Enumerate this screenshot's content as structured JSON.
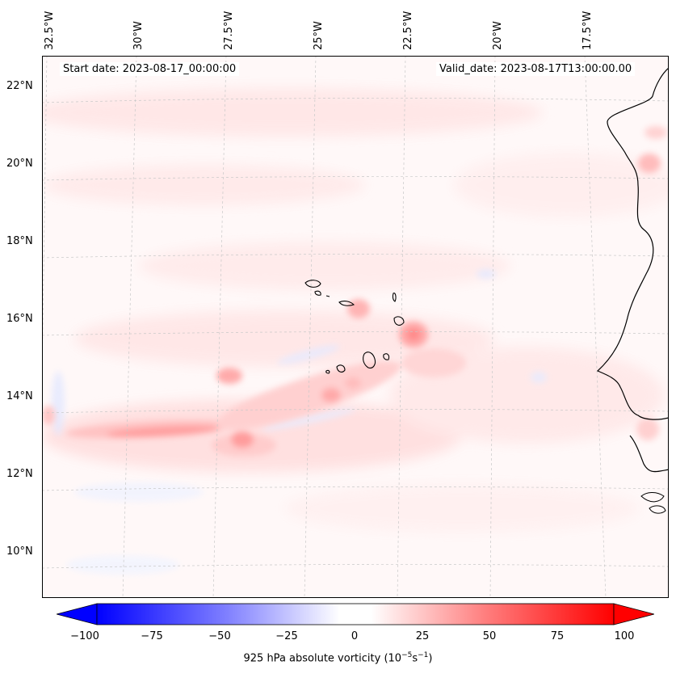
{
  "map": {
    "start_date": "Start date: 2023-08-17_00:00:00",
    "valid_date": "Valid_date: 2023-08-17T13:00:00.00",
    "lon_labels": [
      "32.5°W",
      "30°W",
      "27.5°W",
      "25°W",
      "22.5°W",
      "20°W",
      "17.5°W"
    ],
    "lat_labels": [
      "22°N",
      "20°N",
      "18°N",
      "16°N",
      "14°N",
      "12°N",
      "10°N"
    ],
    "extent": {
      "lon": [
        -33.5,
        -15.0
      ],
      "lat": [
        8.8,
        22.8
      ]
    },
    "features": [
      "coastline-west-africa",
      "cape-verde-islands"
    ],
    "field": "925 hPa absolute vorticity"
  },
  "colorbar": {
    "ticks": [
      "−100",
      "−75",
      "−50",
      "−25",
      "0",
      "25",
      "50",
      "75",
      "100"
    ],
    "label_main": "925 hPa absolute vorticity (10",
    "label_exp1": "−5",
    "label_unit": "s",
    "label_exp2": "−1",
    "label_end": ")",
    "range": [
      -100,
      100
    ],
    "colormap": "bwr",
    "colors": {
      "min": "#0000ff",
      "mid": "#ffffff",
      "max": "#ff0000"
    }
  }
}
